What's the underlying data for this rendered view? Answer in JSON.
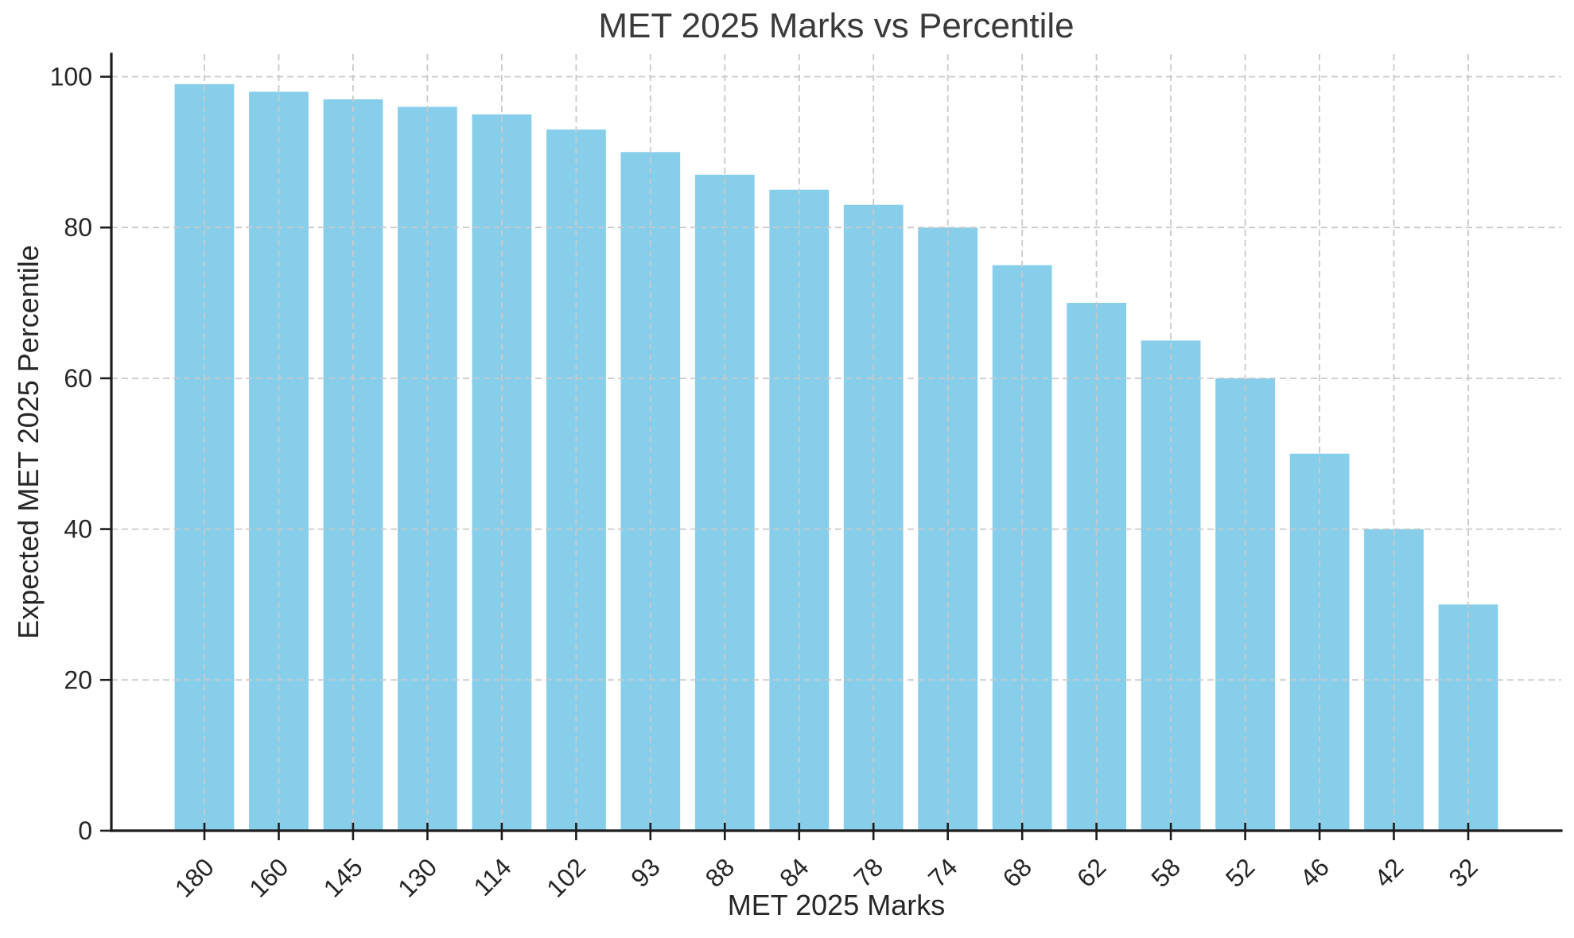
{
  "chart_data": {
    "type": "bar",
    "title": "MET 2025 Marks vs Percentile",
    "xlabel": "MET 2025 Marks",
    "ylabel": "Expected MET 2025 Percentile",
    "categories": [
      "180",
      "160",
      "145",
      "130",
      "114",
      "102",
      "93",
      "88",
      "84",
      "78",
      "74",
      "68",
      "62",
      "58",
      "52",
      "46",
      "42",
      "32"
    ],
    "values": [
      99,
      98,
      97,
      96,
      95,
      93,
      90,
      87,
      85,
      83,
      80,
      75,
      70,
      65,
      60,
      50,
      40,
      30
    ],
    "yticks": [
      0,
      20,
      40,
      60,
      80,
      100
    ],
    "ylim": [
      0,
      103
    ],
    "grid": true,
    "grid_style": "dashed",
    "legend_position": "none",
    "colors": {
      "bar": "#87CEEB",
      "grid": "#c9c9c9",
      "text": "#262626",
      "title": "#3a3a3a",
      "spine": "#1c1c1c",
      "background": "#ffffff"
    }
  }
}
